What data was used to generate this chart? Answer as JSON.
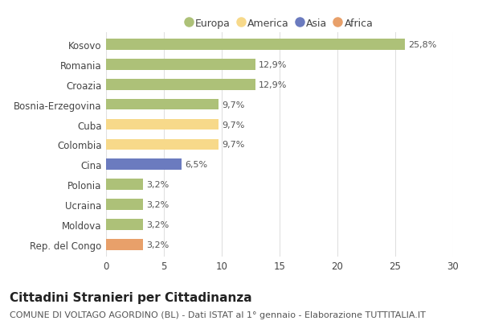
{
  "categories": [
    "Kosovo",
    "Romania",
    "Croazia",
    "Bosnia-Erzegovina",
    "Cuba",
    "Colombia",
    "Cina",
    "Polonia",
    "Ucraina",
    "Moldova",
    "Rep. del Congo"
  ],
  "values": [
    25.8,
    12.9,
    12.9,
    9.7,
    9.7,
    9.7,
    6.5,
    3.2,
    3.2,
    3.2,
    3.2
  ],
  "labels": [
    "25,8%",
    "12,9%",
    "12,9%",
    "9,7%",
    "9,7%",
    "9,7%",
    "6,5%",
    "3,2%",
    "3,2%",
    "3,2%",
    "3,2%"
  ],
  "colors": [
    "#adc178",
    "#adc178",
    "#adc178",
    "#adc178",
    "#f7d98a",
    "#f7d98a",
    "#6b7bbf",
    "#adc178",
    "#adc178",
    "#adc178",
    "#e8a06a"
  ],
  "legend_labels": [
    "Europa",
    "America",
    "Asia",
    "Africa"
  ],
  "legend_colors": [
    "#adc178",
    "#f7d98a",
    "#6b7bbf",
    "#e8a06a"
  ],
  "title": "Cittadini Stranieri per Cittadinanza",
  "subtitle": "COMUNE DI VOLTAGO AGORDINO (BL) - Dati ISTAT al 1° gennaio - Elaborazione TUTTITALIA.IT",
  "xlim": [
    0,
    30
  ],
  "xticks": [
    0,
    5,
    10,
    15,
    20,
    25,
    30
  ],
  "bg_color": "#ffffff",
  "grid_color": "#e0e0e0",
  "bar_height": 0.55,
  "title_fontsize": 11,
  "subtitle_fontsize": 8,
  "label_fontsize": 8,
  "tick_fontsize": 8.5,
  "legend_fontsize": 9
}
